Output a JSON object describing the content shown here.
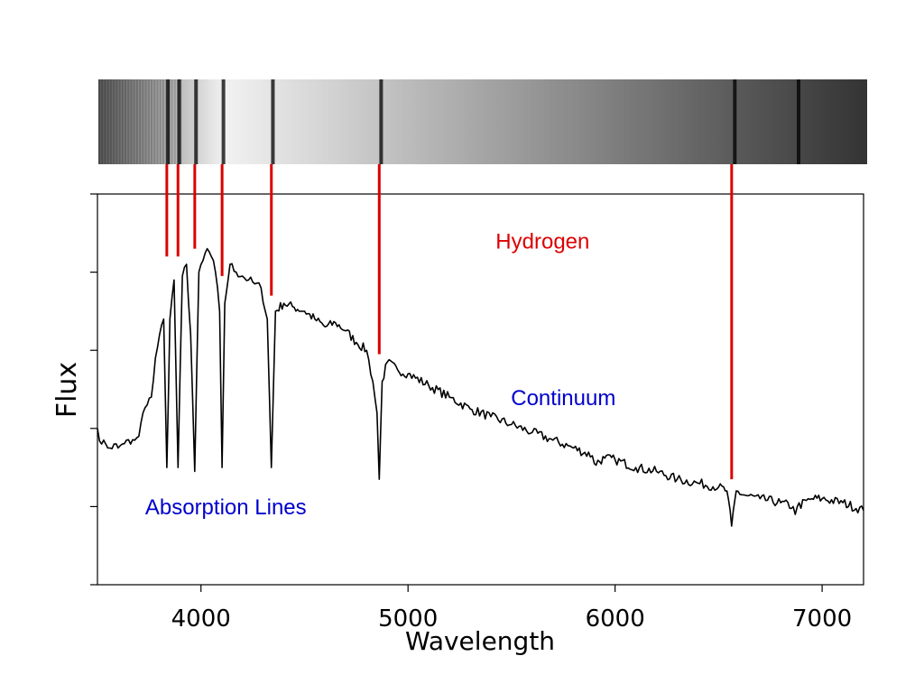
{
  "chart_data": {
    "type": "line",
    "title": "",
    "xlabel": "Wavelength",
    "ylabel": "Flux",
    "xlim": [
      3500,
      7200
    ],
    "ylim": [
      0,
      5
    ],
    "grid": false,
    "x_ticks": [
      4000,
      5000,
      6000,
      7000
    ],
    "x_tick_labels": [
      "4000",
      "5000",
      "6000",
      "7000"
    ],
    "y_ticks": [
      0,
      1,
      2,
      3,
      4,
      5
    ],
    "y_tick_labels": [],
    "series": [
      {
        "x": [
          3500,
          3520,
          3540,
          3560,
          3580,
          3600,
          3620,
          3640,
          3660,
          3680,
          3700,
          3720,
          3740,
          3760,
          3780,
          3800,
          3820,
          3835,
          3850,
          3870,
          3889,
          3910,
          3930,
          3950,
          3970,
          3990,
          4010,
          4030,
          4050,
          4070,
          4090,
          4102,
          4115,
          4140,
          4170,
          4200,
          4230,
          4260,
          4290,
          4320,
          4340,
          4360,
          4400,
          4450,
          4500,
          4550,
          4600,
          4650,
          4700,
          4750,
          4800,
          4830,
          4850,
          4861,
          4875,
          4900,
          4950,
          5000,
          5100,
          5200,
          5300,
          5400,
          5500,
          5600,
          5700,
          5800,
          5890,
          5900,
          5950,
          6000,
          6100,
          6200,
          6300,
          6400,
          6500,
          6540,
          6563,
          6585,
          6620,
          6700,
          6800,
          6860,
          6870,
          6880,
          6950,
          7000,
          7100,
          7200
        ],
        "y": [
          2.0,
          1.8,
          1.8,
          1.75,
          1.8,
          1.75,
          1.8,
          1.85,
          1.8,
          1.85,
          1.9,
          2.2,
          2.3,
          2.4,
          2.9,
          3.2,
          3.4,
          1.5,
          3.4,
          3.9,
          1.5,
          3.95,
          4.1,
          3.2,
          1.45,
          4.0,
          4.15,
          4.3,
          4.2,
          4.0,
          3.5,
          1.5,
          3.6,
          4.1,
          4.0,
          3.95,
          3.9,
          3.85,
          3.8,
          3.4,
          1.5,
          3.5,
          3.6,
          3.55,
          3.5,
          3.4,
          3.3,
          3.35,
          3.25,
          3.1,
          3.0,
          2.6,
          2.2,
          1.35,
          2.6,
          2.85,
          2.75,
          2.7,
          2.55,
          2.4,
          2.25,
          2.15,
          2.05,
          1.95,
          1.85,
          1.75,
          1.65,
          1.55,
          1.62,
          1.6,
          1.5,
          1.45,
          1.35,
          1.3,
          1.25,
          1.2,
          0.75,
          1.2,
          1.15,
          1.1,
          1.05,
          1.0,
          0.9,
          1.0,
          1.1,
          1.1,
          1.05,
          0.95
        ]
      }
    ],
    "line_markers": {
      "name": "Hydrogen",
      "wavelengths": [
        3835,
        3889,
        3970,
        4102,
        4340,
        4861,
        6563
      ],
      "bottom_flux": [
        4.2,
        4.2,
        4.3,
        3.95,
        3.7,
        2.95,
        1.35
      ]
    },
    "spectrum_strip": {
      "dark_lines": [
        3835,
        3889,
        3970,
        4102,
        4340,
        4861,
        6563,
        6870
      ]
    },
    "annotations": [
      {
        "text": "Hydrogen",
        "x": 5650,
        "y": 4.3,
        "color": "#dd0000"
      },
      {
        "text": "Continuum",
        "x": 5750,
        "y": 2.3,
        "color": "#0000cc"
      },
      {
        "text": "Absorption Lines",
        "x": 4120,
        "y": 0.9,
        "color": "#0000cc"
      }
    ],
    "colors": {
      "spectrum_line": "#000000",
      "marker": "#dd0000",
      "blue_text": "#0000cc",
      "red_text": "#dd0000"
    }
  }
}
